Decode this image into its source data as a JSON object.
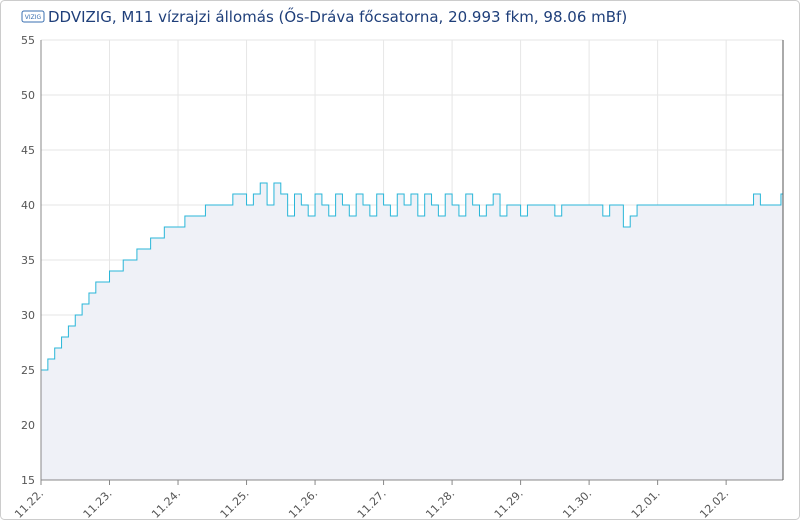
{
  "chart_data": {
    "type": "step-line",
    "title": "DDVIZIG, M11 vízrajzi állomás (Ős-Dráva főcsatorna, 20.993 fkm, 98.06 mBf)",
    "x": [
      0,
      0.1,
      0.2,
      0.3,
      0.4,
      0.5,
      0.6,
      0.7,
      0.8,
      0.9,
      1,
      1.1,
      1.2,
      1.3,
      1.4,
      1.5,
      1.6,
      1.7,
      1.8,
      1.9,
      2,
      2.1,
      2.2,
      2.3,
      2.4,
      2.5,
      2.6,
      2.7,
      2.8,
      2.9,
      3,
      3.1,
      3.2,
      3.3,
      3.4,
      3.5,
      3.6,
      3.7,
      3.8,
      3.9,
      4,
      4.1,
      4.2,
      4.3,
      4.4,
      4.5,
      4.6,
      4.7,
      4.8,
      4.9,
      5,
      5.1,
      5.2,
      5.3,
      5.4,
      5.5,
      5.6,
      5.7,
      5.8,
      5.9,
      6,
      6.1,
      6.2,
      6.3,
      6.4,
      6.5,
      6.6,
      6.7,
      6.8,
      6.9,
      7,
      7.1,
      7.2,
      7.3,
      7.4,
      7.5,
      7.6,
      7.7,
      7.8,
      7.9,
      8,
      8.1,
      8.2,
      8.3,
      8.4,
      8.5,
      8.6,
      8.7,
      8.8,
      8.9,
      9,
      9.1,
      9.2,
      9.3,
      9.4,
      9.5,
      9.6,
      9.7,
      9.8,
      9.9,
      10,
      10.1,
      10.2,
      10.3,
      10.4,
      10.5,
      10.6,
      10.7,
      10.8
    ],
    "series": [
      {
        "color": "#29b6d8",
        "values": [
          25,
          26,
          27,
          28,
          29,
          30,
          31,
          32,
          33,
          33,
          34,
          34,
          35,
          35,
          36,
          36,
          37,
          37,
          38,
          38,
          38,
          39,
          39,
          39,
          40,
          40,
          40,
          40,
          41,
          41,
          40,
          41,
          42,
          40,
          42,
          41,
          39,
          41,
          40,
          39,
          41,
          40,
          39,
          41,
          40,
          39,
          41,
          40,
          39,
          41,
          40,
          39,
          41,
          40,
          41,
          39,
          41,
          40,
          39,
          41,
          40,
          39,
          41,
          40,
          39,
          40,
          41,
          39,
          40,
          40,
          39,
          40,
          40,
          40,
          40,
          39,
          40,
          40,
          40,
          40,
          40,
          40,
          39,
          40,
          40,
          38,
          39,
          40,
          40,
          40,
          40,
          40,
          40,
          40,
          40,
          40,
          40,
          40,
          40,
          40,
          40,
          40,
          40,
          40,
          41,
          40,
          40,
          40,
          41
        ]
      }
    ],
    "xlim": [
      0,
      10.83
    ],
    "xticks": [
      {
        "value": 0,
        "label": "11.22."
      },
      {
        "value": 1,
        "label": "11.23."
      },
      {
        "value": 2,
        "label": "11.24."
      },
      {
        "value": 3,
        "label": "11.25."
      },
      {
        "value": 4,
        "label": "11.26."
      },
      {
        "value": 5,
        "label": "11.27."
      },
      {
        "value": 6,
        "label": "11.28."
      },
      {
        "value": 7,
        "label": "11.29."
      },
      {
        "value": 8,
        "label": "11.30."
      },
      {
        "value": 9,
        "label": "12.01."
      },
      {
        "value": 10,
        "label": "12.02."
      }
    ],
    "ylim": [
      15,
      55
    ],
    "yticks": [
      15,
      20,
      25,
      30,
      35,
      40,
      45,
      50,
      55
    ],
    "grid": true
  }
}
